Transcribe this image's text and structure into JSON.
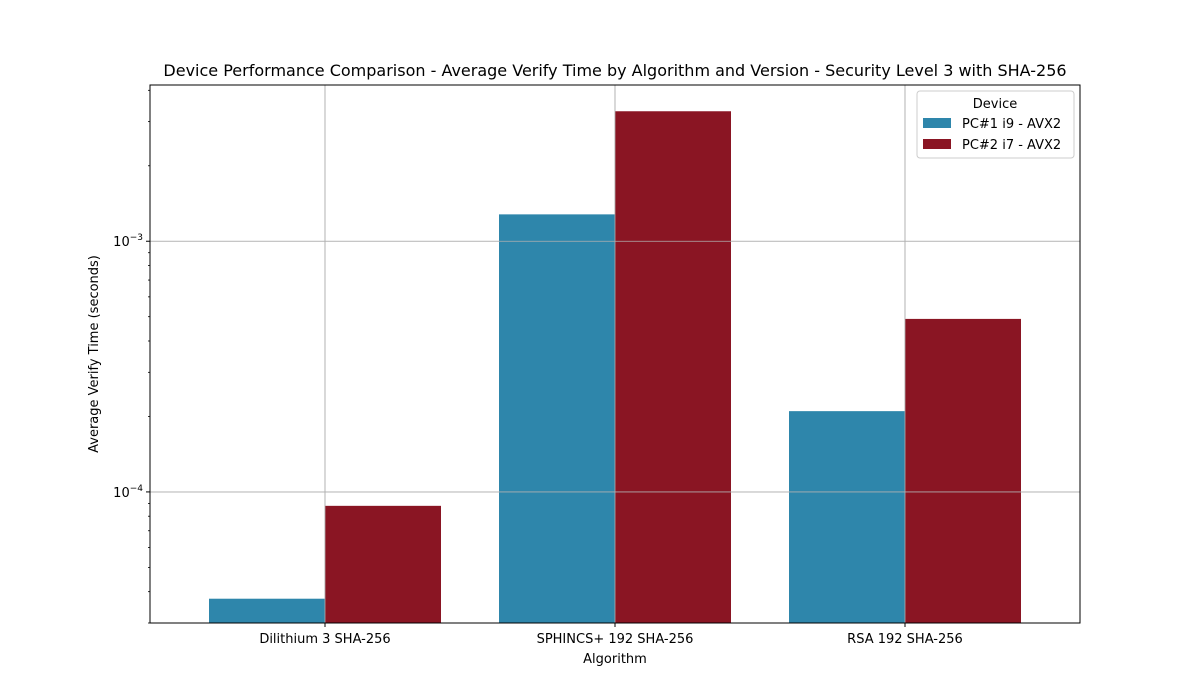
{
  "chart_data": {
    "type": "bar",
    "title": "Device Performance Comparison - Average Verify Time by Algorithm and Version - Security Level 3 with SHA-256",
    "xlabel": "Algorithm",
    "ylabel": "Average Verify Time (seconds)",
    "yscale": "log",
    "ylim": [
      3e-05,
      0.0042
    ],
    "y_major_ticks": [
      {
        "value": 0.0001,
        "base": "10",
        "exp": "−4"
      },
      {
        "value": 0.001,
        "base": "10",
        "exp": "−3"
      }
    ],
    "grid": true,
    "categories": [
      "Dilithium 3 SHA-256",
      "SPHINCS+ 192 SHA-256",
      "RSA 192 SHA-256"
    ],
    "series": [
      {
        "name": "PC#1 i9 - AVX2",
        "color": "#2e86ab",
        "values": [
          3.75e-05,
          0.00128,
          0.00021
        ]
      },
      {
        "name": "PC#2 i7 - AVX2",
        "color": "#8a1523",
        "values": [
          8.8e-05,
          0.0033,
          0.00049
        ]
      }
    ],
    "legend": {
      "title": "Device",
      "placement": "top-right"
    }
  }
}
